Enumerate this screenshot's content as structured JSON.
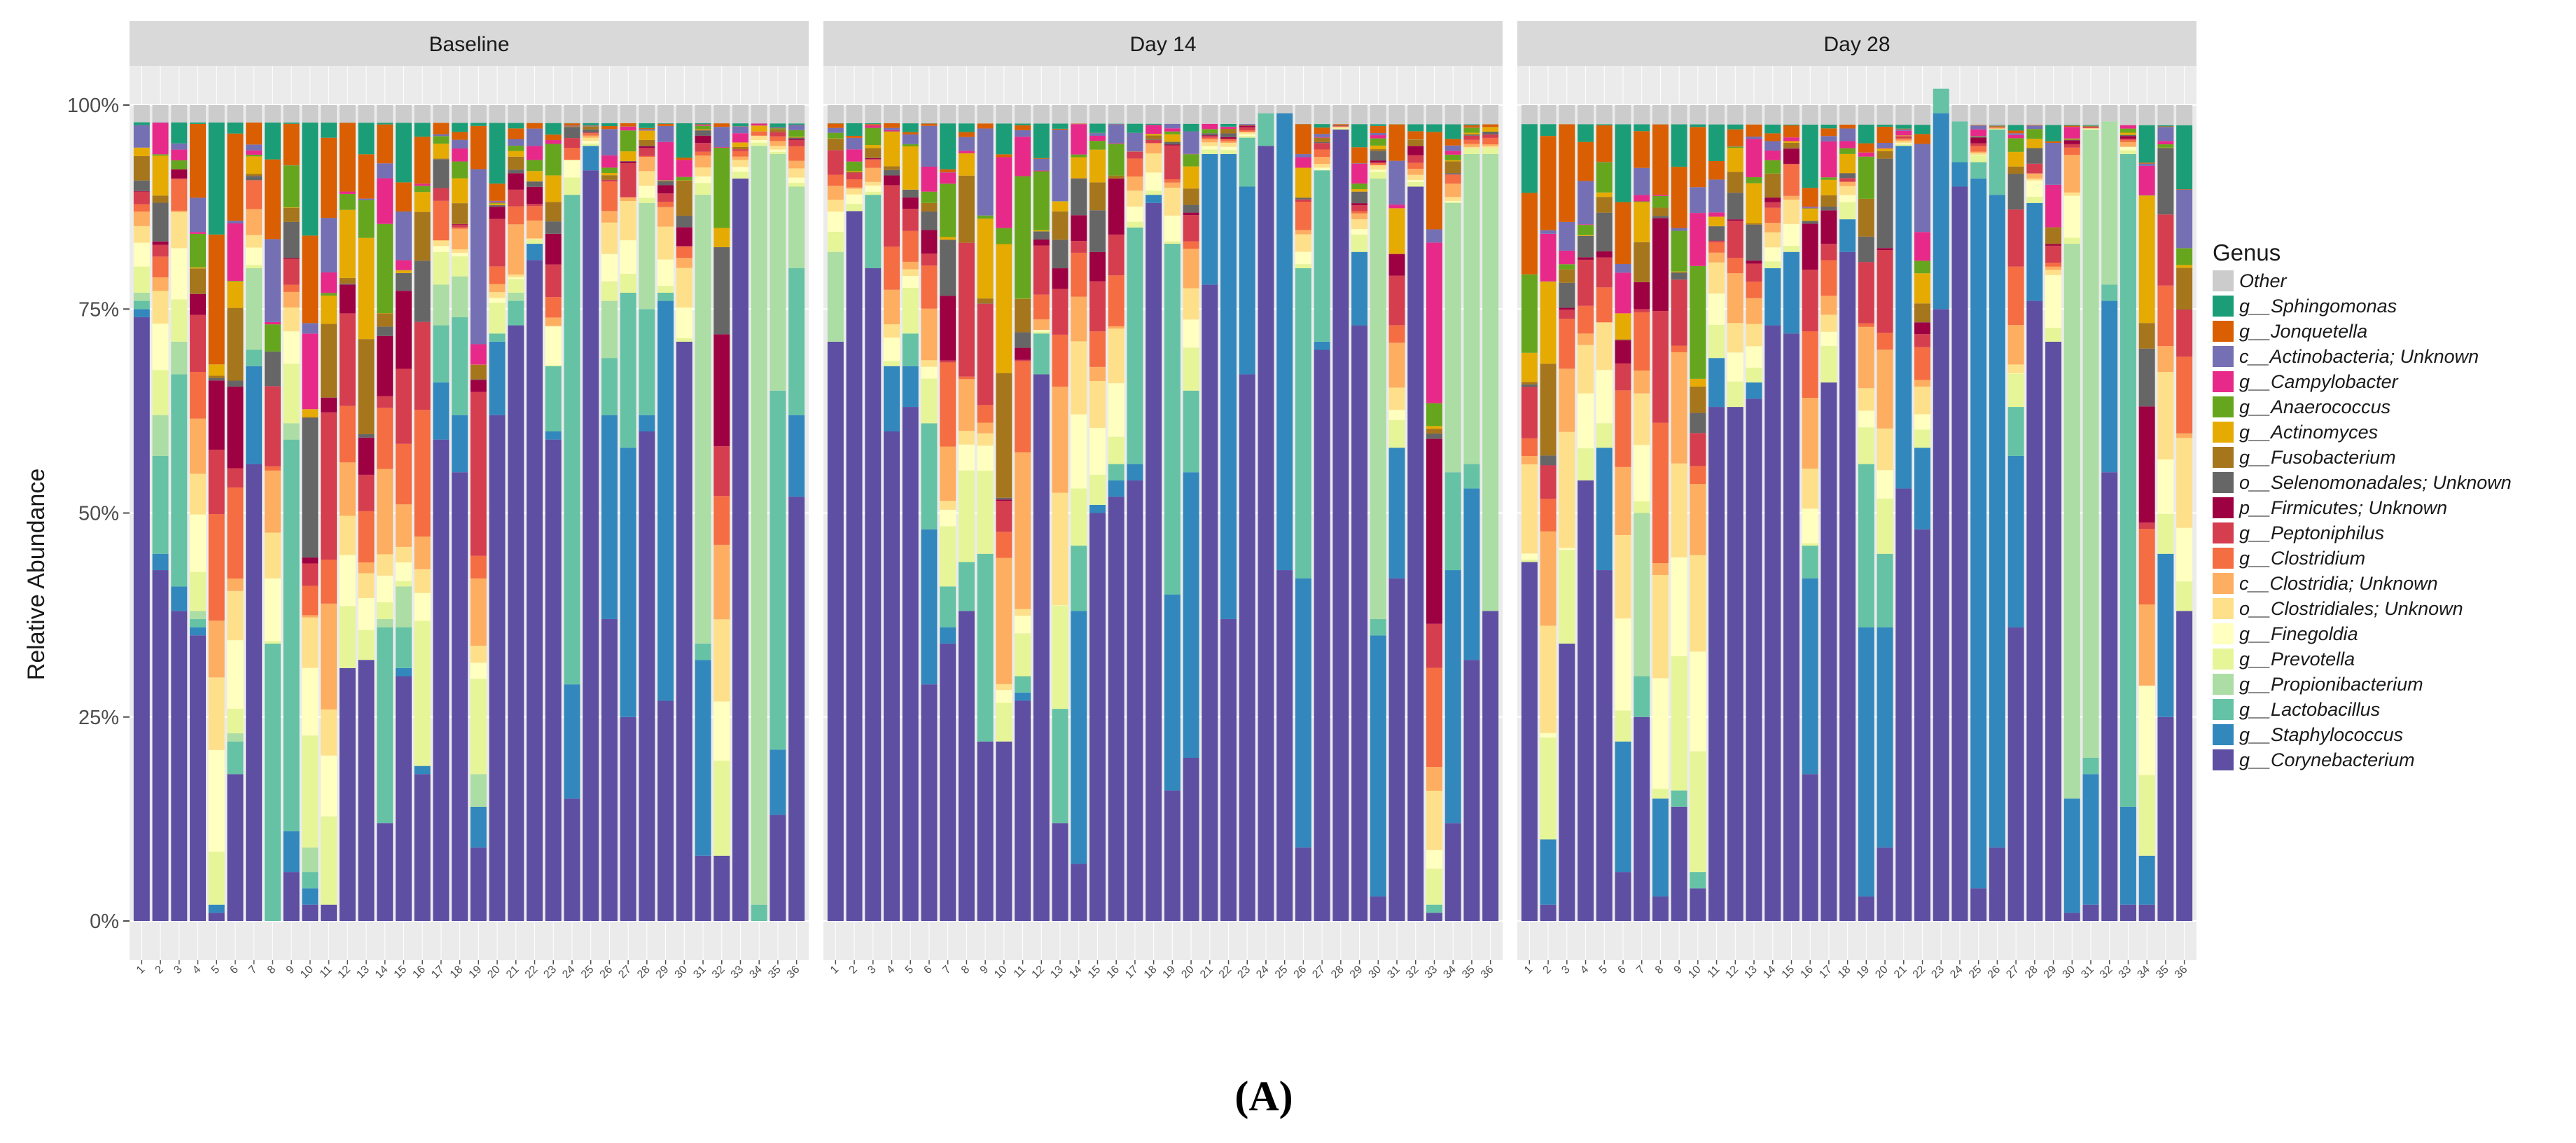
{
  "chart_data": {
    "type": "bar",
    "stacked": true,
    "ylabel": "Relative Abundance",
    "xlabel": "",
    "y_ticks": [
      "0%",
      "25%",
      "50%",
      "75%",
      "100%"
    ],
    "ylim": [
      0,
      1
    ],
    "legend": {
      "title": "Genus",
      "placement": "right",
      "items": [
        {
          "name": "Other",
          "color": "#cccccc"
        },
        {
          "name": "g__Sphingomonas",
          "color": "#1b9e77"
        },
        {
          "name": "g__Jonquetella",
          "color": "#d95f02"
        },
        {
          "name": "c__Actinobacteria; Unknown",
          "color": "#7570b3"
        },
        {
          "name": "g__Campylobacter",
          "color": "#e7298a"
        },
        {
          "name": "g__Anaerococcus",
          "color": "#66a61e"
        },
        {
          "name": "g__Actinomyces",
          "color": "#e6ab02"
        },
        {
          "name": "g__Fusobacterium",
          "color": "#a6761d"
        },
        {
          "name": "o__Selenomonadales; Unknown",
          "color": "#666666"
        },
        {
          "name": "p__Firmicutes; Unknown",
          "color": "#9e0142"
        },
        {
          "name": "g__Peptoniphilus",
          "color": "#d53e4f"
        },
        {
          "name": "g__Clostridium",
          "color": "#f46d43"
        },
        {
          "name": "c__Clostridia; Unknown",
          "color": "#fdae61"
        },
        {
          "name": "o__Clostridiales; Unknown",
          "color": "#fee08b"
        },
        {
          "name": "g__Finegoldia",
          "color": "#ffffbf"
        },
        {
          "name": "g__Prevotella",
          "color": "#e6f598"
        },
        {
          "name": "g__Propionibacterium",
          "color": "#abdda4"
        },
        {
          "name": "g__Lactobacillus",
          "color": "#66c2a5"
        },
        {
          "name": "g__Staphylococcus",
          "color": "#3288bd"
        },
        {
          "name": "g__Corynebacterium",
          "color": "#5e4fa2"
        }
      ]
    },
    "categories": [
      "1",
      "2",
      "3",
      "4",
      "5",
      "6",
      "7",
      "8",
      "9",
      "10",
      "11",
      "12",
      "13",
      "14",
      "15",
      "16",
      "17",
      "18",
      "19",
      "20",
      "21",
      "22",
      "23",
      "24",
      "25",
      "26",
      "27",
      "28",
      "29",
      "30",
      "31",
      "32",
      "33",
      "34",
      "35",
      "36"
    ],
    "panels": [
      {
        "title": "Baseline",
        "corynebacterium": [
          0.74,
          0.43,
          0.38,
          0.35,
          0.01,
          0.18,
          0.56,
          0.0,
          0.06,
          0.02,
          0.02,
          0.31,
          0.32,
          0.12,
          0.3,
          0.18,
          0.59,
          0.55,
          0.09,
          0.62,
          0.73,
          0.81,
          0.59,
          0.15,
          0.92,
          0.37,
          0.25,
          0.6,
          0.27,
          0.71,
          0.08,
          0.08,
          0.91,
          0.0,
          0.13,
          0.52
        ],
        "staphylococcus": [
          0.01,
          0.02,
          0.03,
          0.01,
          0.01,
          0.0,
          0.12,
          0.0,
          0.05,
          0.02,
          0.0,
          0.0,
          0.0,
          0.0,
          0.01,
          0.01,
          0.07,
          0.07,
          0.05,
          0.09,
          0.0,
          0.02,
          0.01,
          0.14,
          0.03,
          0.25,
          0.33,
          0.02,
          0.49,
          0.0,
          0.24,
          0.0,
          0.0,
          0.0,
          0.08,
          0.1
        ],
        "lactobacillus": [
          0.01,
          0.12,
          0.26,
          0.01,
          0.0,
          0.04,
          0.02,
          0.34,
          0.48,
          0.02,
          0.0,
          0.0,
          0.0,
          0.24,
          0.05,
          0.0,
          0.07,
          0.12,
          0.0,
          0.01,
          0.03,
          0.0,
          0.08,
          0.6,
          0.0,
          0.07,
          0.19,
          0.13,
          0.01,
          0.0,
          0.02,
          0.0,
          0.0,
          0.02,
          0.44,
          0.18
        ],
        "propionibacterium": [
          0.01,
          0.05,
          0.04,
          0.01,
          0.0,
          0.01,
          0.1,
          0.0,
          0.02,
          0.03,
          0.0,
          0.0,
          0.0,
          0.01,
          0.05,
          0.0,
          0.05,
          0.05,
          0.04,
          0.0,
          0.01,
          0.0,
          0.0,
          0.0,
          0.0,
          0.07,
          0.0,
          0.13,
          0.0,
          0.0,
          0.55,
          0.0,
          0.0,
          0.93,
          0.29,
          0.1
        ]
      },
      {
        "title": "Day 14",
        "corynebacterium": [
          0.71,
          0.87,
          0.8,
          0.6,
          0.63,
          0.29,
          0.34,
          0.38,
          0.22,
          0.22,
          0.27,
          0.67,
          0.12,
          0.07,
          0.5,
          0.52,
          0.54,
          0.88,
          0.16,
          0.2,
          0.78,
          0.37,
          0.67,
          0.95,
          0.43,
          0.09,
          0.7,
          0.97,
          0.73,
          0.03,
          0.42,
          0.9,
          0.01,
          0.12,
          0.32,
          0.38
        ],
        "staphylococcus": [
          0.0,
          0.0,
          0.0,
          0.08,
          0.05,
          0.19,
          0.02,
          0.0,
          0.0,
          0.0,
          0.01,
          0.0,
          0.0,
          0.31,
          0.01,
          0.02,
          0.02,
          0.01,
          0.24,
          0.35,
          0.16,
          0.57,
          0.23,
          0.0,
          0.56,
          0.33,
          0.01,
          0.0,
          0.09,
          0.32,
          0.16,
          0.0,
          0.0,
          0.31,
          0.21,
          0.0
        ],
        "lactobacillus": [
          0.0,
          0.0,
          0.09,
          0.0,
          0.04,
          0.13,
          0.05,
          0.06,
          0.23,
          0.0,
          0.02,
          0.05,
          0.14,
          0.08,
          0.0,
          0.02,
          0.29,
          0.0,
          0.43,
          0.1,
          0.0,
          0.0,
          0.06,
          0.04,
          0.0,
          0.38,
          0.21,
          0.0,
          0.0,
          0.02,
          0.0,
          0.0,
          0.01,
          0.12,
          0.03,
          0.0
        ],
        "propionibacterium": [
          0.11,
          0.0,
          0.0,
          0.0,
          0.0,
          0.0,
          0.0,
          0.0,
          0.0,
          0.0,
          0.0,
          0.0,
          0.0,
          0.0,
          0.0,
          0.0,
          0.0,
          0.0,
          0.0,
          0.0,
          0.0,
          0.0,
          0.0,
          0.0,
          0.0,
          0.0,
          0.0,
          0.0,
          0.0,
          0.54,
          0.0,
          0.0,
          0.0,
          0.33,
          0.38,
          0.56
        ]
      },
      {
        "title": "Day 28",
        "corynebacterium": [
          0.44,
          0.02,
          0.34,
          0.54,
          0.43,
          0.06,
          0.25,
          0.03,
          0.14,
          0.04,
          0.63,
          0.63,
          0.64,
          0.73,
          0.72,
          0.18,
          0.66,
          0.82,
          0.03,
          0.09,
          0.53,
          0.48,
          0.75,
          0.9,
          0.04,
          0.09,
          0.36,
          0.76,
          0.71,
          0.01,
          0.02,
          0.55,
          0.02,
          0.02,
          0.25,
          0.38
        ],
        "staphylococcus": [
          0.0,
          0.08,
          0.0,
          0.0,
          0.15,
          0.16,
          0.0,
          0.12,
          0.0,
          0.0,
          0.06,
          0.0,
          0.02,
          0.07,
          0.1,
          0.24,
          0.0,
          0.04,
          0.33,
          0.27,
          0.42,
          0.1,
          0.24,
          0.03,
          0.87,
          0.8,
          0.21,
          0.12,
          0.0,
          0.14,
          0.16,
          0.21,
          0.12,
          0.06,
          0.2,
          0.0
        ],
        "lactobacillus": [
          0.0,
          0.0,
          0.0,
          0.0,
          0.0,
          0.0,
          0.05,
          0.0,
          0.02,
          0.02,
          0.0,
          0.0,
          0.0,
          0.0,
          0.0,
          0.04,
          0.0,
          0.0,
          0.2,
          0.09,
          0.0,
          0.0,
          0.03,
          0.05,
          0.02,
          0.08,
          0.06,
          0.0,
          0.0,
          0.0,
          0.02,
          0.02,
          0.8,
          0.0,
          0.0,
          0.0
        ],
        "propionibacterium": [
          0.0,
          0.0,
          0.0,
          0.0,
          0.0,
          0.0,
          0.2,
          0.0,
          0.0,
          0.0,
          0.0,
          0.0,
          0.0,
          0.0,
          0.0,
          0.0,
          0.0,
          0.0,
          0.0,
          0.0,
          0.0,
          0.0,
          0.0,
          0.0,
          0.0,
          0.0,
          0.0,
          0.0,
          0.0,
          0.68,
          0.77,
          0.2,
          0.0,
          0.0,
          0.0,
          0.0
        ]
      }
    ],
    "caption": "(A)"
  }
}
